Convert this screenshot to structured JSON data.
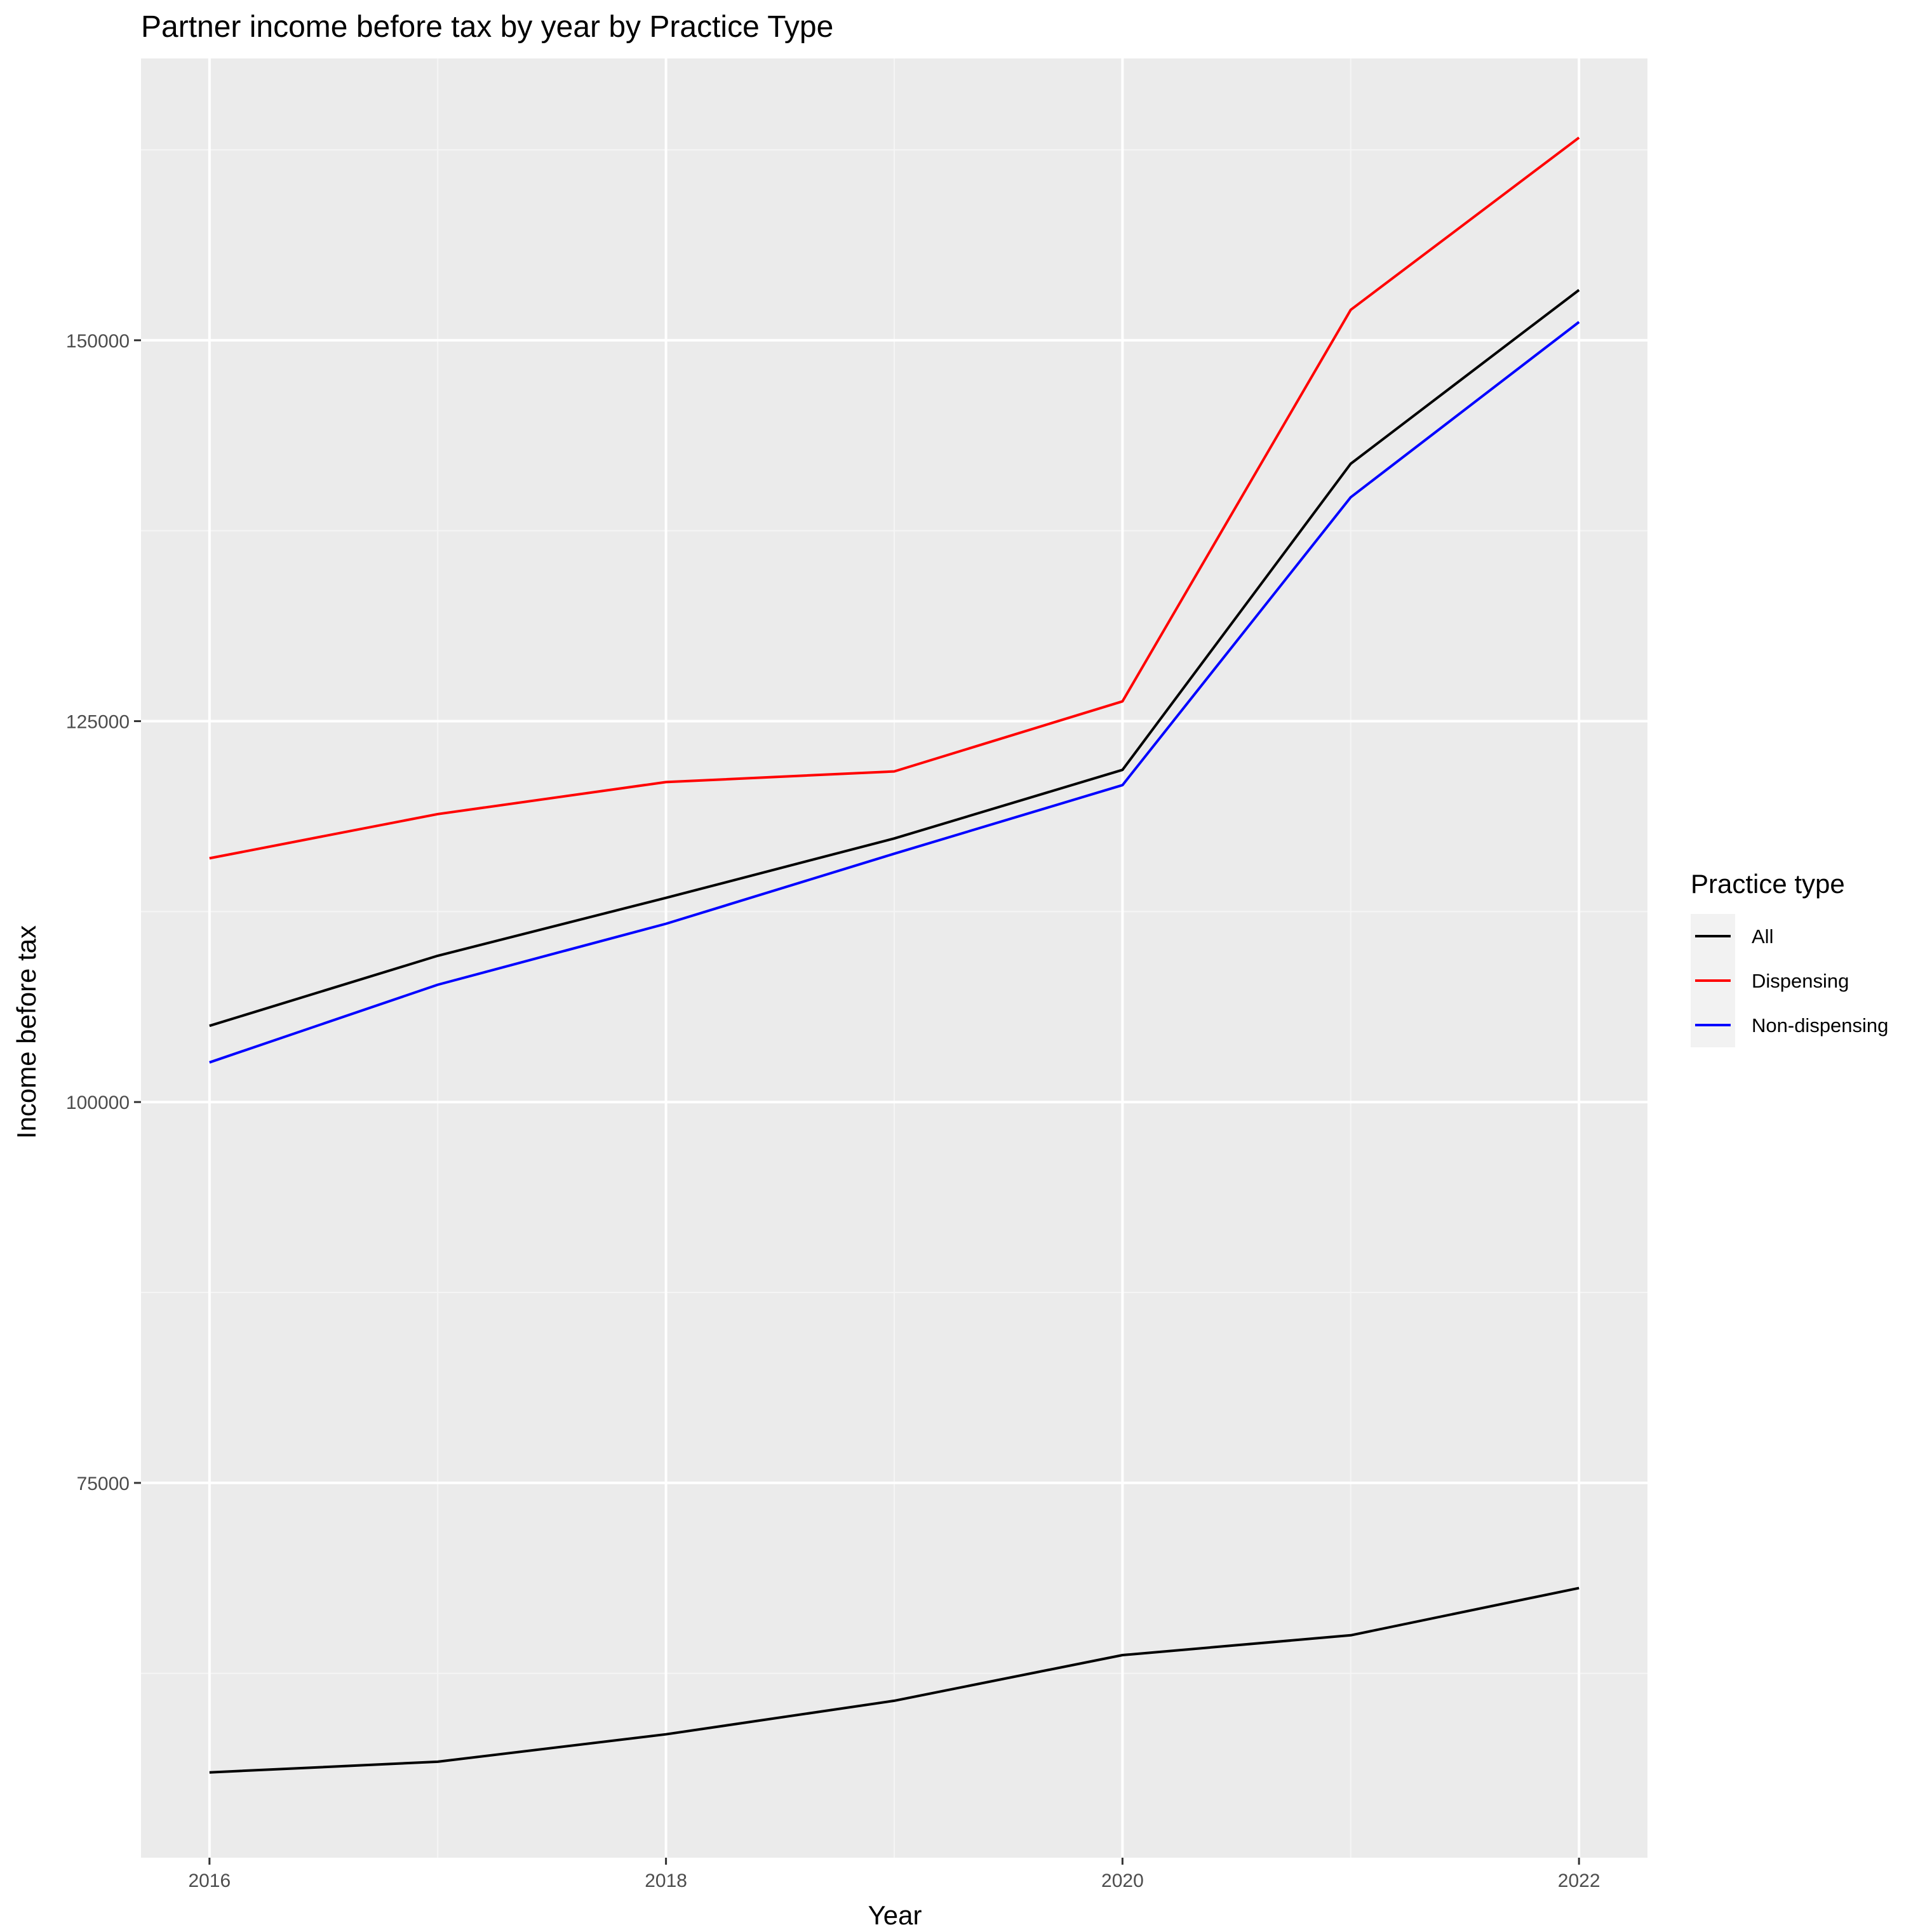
{
  "chart_data": {
    "type": "line",
    "title": "Partner income before tax by year by Practice Type",
    "xlabel": "Year",
    "ylabel": "Income before tax",
    "x": [
      2016,
      2017,
      2018,
      2019,
      2020,
      2021,
      2022
    ],
    "x_ticks": [
      "2016",
      "2018",
      "2020",
      "2022"
    ],
    "y_ticks": [
      "75000",
      "100000",
      "125000",
      "150000"
    ],
    "xlim": [
      2015.7,
      2022.3
    ],
    "ylim": [
      50400,
      168500
    ],
    "grid": true,
    "legend": {
      "title": "Practice type",
      "position": "right",
      "entries": [
        {
          "label": "All",
          "color": "#000000"
        },
        {
          "label": "Dispensing",
          "color": "#ff0000"
        },
        {
          "label": "Non-dispensing",
          "color": "#0000ff"
        }
      ]
    },
    "series": [
      {
        "name": "All",
        "color": "#000000",
        "values": [
          105000,
          109600,
          113400,
          117300,
          121800,
          141900,
          153300
        ]
      },
      {
        "name": "Dispensing",
        "color": "#ff0000",
        "values": [
          116000,
          118900,
          121000,
          121700,
          126300,
          152000,
          163300
        ]
      },
      {
        "name": "Non-dispensing",
        "color": "#0000ff",
        "values": [
          102600,
          107700,
          111700,
          116300,
          120800,
          139700,
          151200
        ]
      },
      {
        "name": "",
        "color": "#000000",
        "values": [
          56000,
          56700,
          58500,
          60700,
          63700,
          65000,
          68100
        ]
      }
    ],
    "colors": {
      "panel_background": "#ebebeb",
      "grid_major": "#ffffff",
      "grid_minor": "#f5f5f5",
      "legend_key_background": "#f2f2f2"
    }
  }
}
